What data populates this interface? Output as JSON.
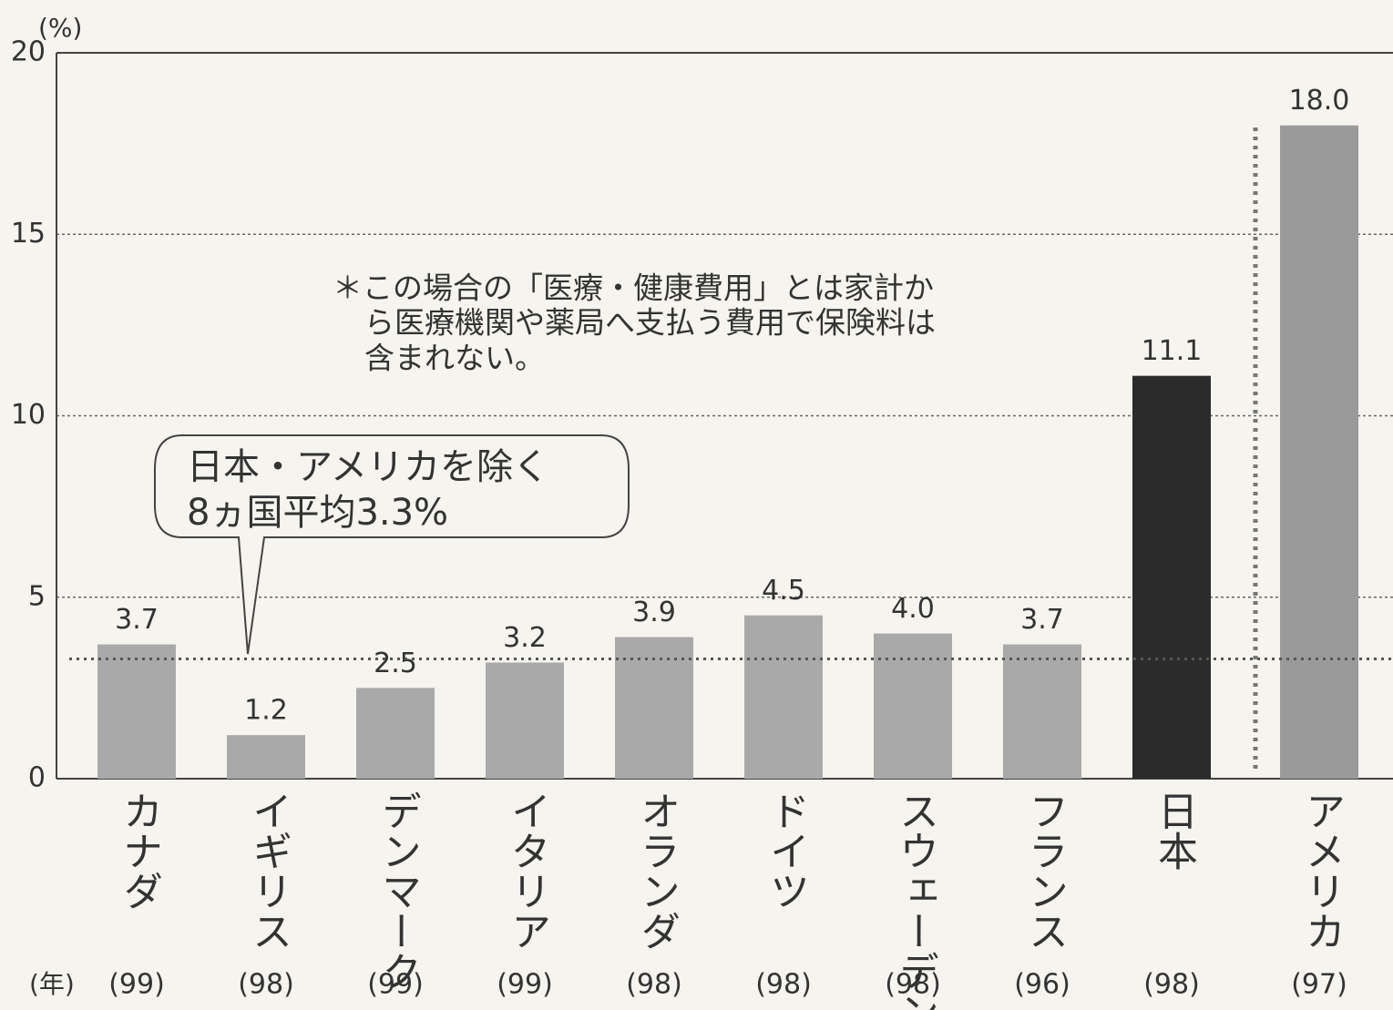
{
  "chart_data": {
    "type": "bar",
    "unit_label": "(%)",
    "year_label": "(年)",
    "categories": [
      "カナダ",
      "イギリス",
      "デンマーク",
      "イタリア",
      "オランダ",
      "ドイツ",
      "スウェーデン",
      "フランス",
      "日本",
      "アメリカ"
    ],
    "years": [
      "(99)",
      "(98)",
      "(99)",
      "(99)",
      "(98)",
      "(98)",
      "(98)",
      "(96)",
      "(98)",
      "(97)"
    ],
    "values": [
      3.7,
      1.2,
      2.5,
      3.2,
      3.9,
      4.5,
      4.0,
      3.7,
      11.1,
      18.0
    ],
    "value_labels": [
      "3.7",
      "1.2",
      "2.5",
      "3.2",
      "3.9",
      "4.5",
      "4.0",
      "3.7",
      "11.1",
      "18.0"
    ],
    "colors": [
      "#a9a9a9",
      "#a9a9a9",
      "#a9a9a9",
      "#a9a9a9",
      "#a9a9a9",
      "#a9a9a9",
      "#a9a9a9",
      "#a9a9a9",
      "#2b2b2b",
      "#9a9a9a"
    ],
    "ylim": [
      0,
      20
    ],
    "yticks": [
      0,
      5,
      10,
      15,
      20
    ],
    "grid": true,
    "reference_line": {
      "value": 3.3
    },
    "callout": [
      "日本・アメリカを除く",
      "8ヵ国平均3.3%"
    ],
    "note": [
      "＊この場合の「医療・健康費用」とは家計か",
      "ら医療機関や薬局へ支払う費用で保険料は",
      "含まれない。"
    ]
  }
}
